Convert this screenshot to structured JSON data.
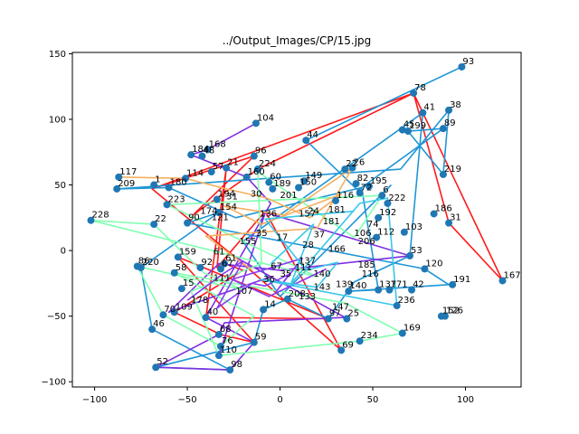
{
  "chart_data": {
    "type": "scatter",
    "title": "../Output_Images/CP/15.jpg",
    "xlabel": "",
    "ylabel": "",
    "xlim": [
      -112,
      130
    ],
    "ylim": [
      -104,
      151
    ],
    "xticks": [
      -100,
      -50,
      0,
      50,
      100
    ],
    "yticks": [
      -100,
      -50,
      0,
      50,
      100,
      150
    ],
    "grid": false,
    "points": [
      {
        "label": "93",
        "x": 98,
        "y": 140
      },
      {
        "label": "78",
        "x": 72,
        "y": 120
      },
      {
        "label": "41",
        "x": 77,
        "y": 105
      },
      {
        "label": "38",
        "x": 91,
        "y": 107
      },
      {
        "label": "89",
        "x": 88,
        "y": 93
      },
      {
        "label": "104",
        "x": -13,
        "y": 97
      },
      {
        "label": "45",
        "x": 66,
        "y": 92
      },
      {
        "label": "199",
        "x": 69,
        "y": 91
      },
      {
        "label": "44",
        "x": 14,
        "y": 84
      },
      {
        "label": "184",
        "x": -48,
        "y": 73
      },
      {
        "label": "168",
        "x": -39,
        "y": 77
      },
      {
        "label": "48",
        "x": -42,
        "y": 72
      },
      {
        "label": "96",
        "x": -14,
        "y": 72
      },
      {
        "label": "21",
        "x": -29,
        "y": 63
      },
      {
        "label": "57",
        "x": -37,
        "y": 60
      },
      {
        "label": "224",
        "x": -12,
        "y": 62
      },
      {
        "label": "160",
        "x": -18,
        "y": 56
      },
      {
        "label": "22",
        "x": 35,
        "y": 62
      },
      {
        "label": "26",
        "x": 39,
        "y": 63
      },
      {
        "label": "219",
        "x": 88,
        "y": 58
      },
      {
        "label": "117",
        "x": -87,
        "y": 56
      },
      {
        "label": "114",
        "x": -51,
        "y": 55
      },
      {
        "label": "149",
        "x": 13,
        "y": 53
      },
      {
        "label": "60",
        "x": -6,
        "y": 52
      },
      {
        "label": "82",
        "x": 41,
        "y": 51
      },
      {
        "label": "195",
        "x": 48,
        "y": 49
      },
      {
        "label": "209",
        "x": -88,
        "y": 47
      },
      {
        "label": "1",
        "x": -68,
        "y": 50
      },
      {
        "label": "180",
        "x": -60,
        "y": 48
      },
      {
        "label": "189",
        "x": -4,
        "y": 47
      },
      {
        "label": "150",
        "x": 10,
        "y": 48
      },
      {
        "label": "72",
        "x": 43,
        "y": 44
      },
      {
        "label": "6",
        "x": 55,
        "y": 42
      },
      {
        "label": "186",
        "x": 83,
        "y": 28
      },
      {
        "label": "31",
        "x": 91,
        "y": 21
      },
      {
        "label": "167",
        "x": 120,
        "y": -23
      },
      {
        "label": "228",
        "x": -102,
        "y": 23
      },
      {
        "label": "22",
        "x": -68,
        "y": 20
      },
      {
        "label": "223",
        "x": -61,
        "y": 35
      },
      {
        "label": "194",
        "x": -34,
        "y": 39
      },
      {
        "label": "222",
        "x": 58,
        "y": 36
      },
      {
        "label": "116",
        "x": 30,
        "y": 38
      },
      {
        "label": "154",
        "x": -33,
        "y": 29
      },
      {
        "label": "192",
        "x": 53,
        "y": 25
      },
      {
        "label": "90",
        "x": -50,
        "y": 21
      },
      {
        "label": "103",
        "x": 67,
        "y": 14
      },
      {
        "label": "112",
        "x": 52,
        "y": 10
      },
      {
        "label": "53",
        "x": 70,
        "y": -4
      },
      {
        "label": "120",
        "x": 78,
        "y": -14
      },
      {
        "label": "191",
        "x": 93,
        "y": -26
      },
      {
        "label": "159",
        "x": -55,
        "y": -5
      },
      {
        "label": "220",
        "x": -75,
        "y": -13
      },
      {
        "label": "86",
        "x": -77,
        "y": -12
      },
      {
        "label": "58",
        "x": -57,
        "y": -17
      },
      {
        "label": "92",
        "x": -43,
        "y": -13
      },
      {
        "label": "67",
        "x": -32,
        "y": -14
      },
      {
        "label": "61",
        "x": -30,
        "y": -10
      },
      {
        "label": "15",
        "x": -53,
        "y": -29
      },
      {
        "label": "42",
        "x": 71,
        "y": -30
      },
      {
        "label": "137",
        "x": 53,
        "y": -30
      },
      {
        "label": "171",
        "x": 59,
        "y": -30
      },
      {
        "label": "140",
        "x": 37,
        "y": -31
      },
      {
        "label": "236",
        "x": 63,
        "y": -42
      },
      {
        "label": "152",
        "x": 87,
        "y": -50
      },
      {
        "label": "126",
        "x": 89,
        "y": -50
      },
      {
        "label": "70",
        "x": -63,
        "y": -49
      },
      {
        "label": "109",
        "x": -57,
        "y": -47
      },
      {
        "label": "46",
        "x": -69,
        "y": -60
      },
      {
        "label": "40",
        "x": -40,
        "y": -51
      },
      {
        "label": "14",
        "x": -9,
        "y": -45
      },
      {
        "label": "208",
        "x": 4,
        "y": -37
      },
      {
        "label": "97",
        "x": 26,
        "y": -52
      },
      {
        "label": "25",
        "x": 36,
        "y": -52
      },
      {
        "label": "169",
        "x": 66,
        "y": -63
      },
      {
        "label": "234",
        "x": 43,
        "y": -69
      },
      {
        "label": "69",
        "x": 33,
        "y": -76
      },
      {
        "label": "68",
        "x": -33,
        "y": -64
      },
      {
        "label": "59",
        "x": -14,
        "y": -70
      },
      {
        "label": "76",
        "x": -32,
        "y": -73
      },
      {
        "label": "110",
        "x": -33,
        "y": -80
      },
      {
        "label": "52",
        "x": -67,
        "y": -89
      },
      {
        "label": "98",
        "x": -27,
        "y": -91
      }
    ],
    "labels_only": [
      {
        "label": "178",
        "x": -48,
        "y": -40
      },
      {
        "label": "61",
        "x": -36,
        "y": -3
      },
      {
        "label": "121",
        "x": -37,
        "y": 23
      },
      {
        "label": "35",
        "x": 0,
        "y": -20
      },
      {
        "label": "137",
        "x": 10,
        "y": -10
      },
      {
        "label": "181",
        "x": 26,
        "y": 29
      },
      {
        "label": "106",
        "x": 40,
        "y": 11
      },
      {
        "label": "185",
        "x": 42,
        "y": -13
      },
      {
        "label": "116",
        "x": 44,
        "y": -20
      },
      {
        "label": "133",
        "x": 10,
        "y": -37
      },
      {
        "label": "143",
        "x": 18,
        "y": -30
      },
      {
        "label": "147",
        "x": 28,
        "y": -45
      },
      {
        "label": "166",
        "x": 26,
        "y": -1
      },
      {
        "label": "206",
        "x": 42,
        "y": 5
      },
      {
        "label": "74",
        "x": 47,
        "y": 18
      },
      {
        "label": "201",
        "x": 0,
        "y": 40
      },
      {
        "label": "157",
        "x": 10,
        "y": 26
      },
      {
        "label": "24",
        "x": 15,
        "y": 28
      },
      {
        "label": "35",
        "x": -13,
        "y": 11
      },
      {
        "label": "155",
        "x": -22,
        "y": 5
      },
      {
        "label": "107",
        "x": -24,
        "y": -33
      },
      {
        "label": "31",
        "x": -29,
        "y": 39
      },
      {
        "label": "30",
        "x": -16,
        "y": 41
      },
      {
        "label": "136",
        "x": -11,
        "y": 26
      },
      {
        "label": "28",
        "x": 12,
        "y": 2
      },
      {
        "label": "139",
        "x": 30,
        "y": -28
      },
      {
        "label": "111",
        "x": -36,
        "y": -23
      },
      {
        "label": "174",
        "x": -43,
        "y": 28
      },
      {
        "label": "17",
        "x": -2,
        "y": 8
      },
      {
        "label": "67",
        "x": -5,
        "y": -14
      },
      {
        "label": "111",
        "x": 8,
        "y": -15
      },
      {
        "label": "140",
        "x": 18,
        "y": -20
      },
      {
        "label": "181",
        "x": 23,
        "y": 20
      },
      {
        "label": "37",
        "x": 18,
        "y": 10
      },
      {
        "label": "36",
        "x": -9,
        "y": -24
      }
    ],
    "paths": [
      {
        "color": "#ff1a1a",
        "x": [
          -69,
          72,
          120,
          91,
          72,
          -12,
          -47,
          -14,
          -69,
          -20,
          33,
          -8,
          -34,
          -29,
          -40,
          26,
          -55,
          -14,
          -32,
          -57,
          -20,
          -30
        ],
        "y": [
          47,
          120,
          -23,
          21,
          120,
          62,
          27,
          72,
          47,
          -10,
          -76,
          30,
          -13,
          63,
          -51,
          -52,
          -5,
          -70,
          -64,
          -47,
          -15,
          -10
        ]
      },
      {
        "color": "#1f96d6",
        "x": [
          98,
          14,
          42,
          88,
          69,
          88,
          91,
          65,
          -88,
          -60,
          -24,
          44,
          53,
          37,
          91,
          78,
          -50,
          -33,
          -75,
          -69,
          -27,
          -67,
          -14,
          -9,
          4,
          26,
          40,
          70,
          77,
          -20,
          0,
          60
        ],
        "y": [
          140,
          84,
          46,
          93,
          91,
          58,
          107,
          62,
          47,
          48,
          25,
          48,
          -30,
          -31,
          -26,
          -14,
          21,
          29,
          -13,
          -60,
          -91,
          -89,
          -70,
          -45,
          -37,
          -52,
          -24,
          -4,
          105,
          7,
          -35,
          50
        ]
      },
      {
        "color": "#7f2fe0",
        "x": [
          -13,
          -39,
          -48,
          -18,
          -5,
          -40,
          -14,
          -27,
          -67,
          -33,
          -30,
          35,
          -28,
          -5,
          -60,
          -33,
          0,
          70,
          -8,
          -33
        ],
        "y": [
          97,
          77,
          73,
          56,
          36,
          -51,
          -70,
          -91,
          -89,
          -64,
          -55,
          -51,
          -2,
          -20,
          -47,
          -10,
          -15,
          -4,
          29,
          -80
        ]
      },
      {
        "color": "#80ffb0",
        "x": [
          -102,
          -68,
          -50,
          -41,
          -20,
          -77,
          -63,
          -32,
          -14,
          -57,
          35,
          66,
          43,
          -33,
          -48,
          -10,
          -12,
          40,
          55,
          -61,
          20,
          -102
        ],
        "y": [
          23,
          20,
          -5,
          -17,
          -30,
          -12,
          -49,
          -73,
          -50,
          -17,
          -40,
          -63,
          -69,
          -80,
          -31,
          -10,
          60,
          10,
          42,
          35,
          -20,
          23
        ]
      },
      {
        "color": "#f4b060",
        "x": [
          -87,
          -51,
          -29,
          -7,
          16,
          33,
          -10,
          -30,
          2,
          39,
          20,
          -40,
          -15
        ],
        "y": [
          56,
          55,
          47,
          40,
          25,
          43,
          20,
          34,
          27,
          63,
          17,
          11,
          -15
        ]
      },
      {
        "color": "#8a3cf0",
        "x": [
          -50,
          -31,
          -20,
          -34,
          -15,
          -8,
          5,
          -2,
          12,
          -26,
          -6,
          25
        ],
        "y": [
          -38,
          -18,
          -8,
          -44,
          -25,
          -27,
          -18,
          -31,
          -6,
          -22,
          -35,
          -14
        ]
      },
      {
        "color": "#37c8e8",
        "x": [
          -5,
          18,
          6,
          43,
          58,
          63,
          -11,
          20,
          31,
          14,
          -8,
          40
        ],
        "y": [
          -10,
          20,
          -25,
          36,
          40,
          -42,
          -22,
          -28,
          -9,
          -15,
          24,
          30
        ]
      }
    ]
  }
}
